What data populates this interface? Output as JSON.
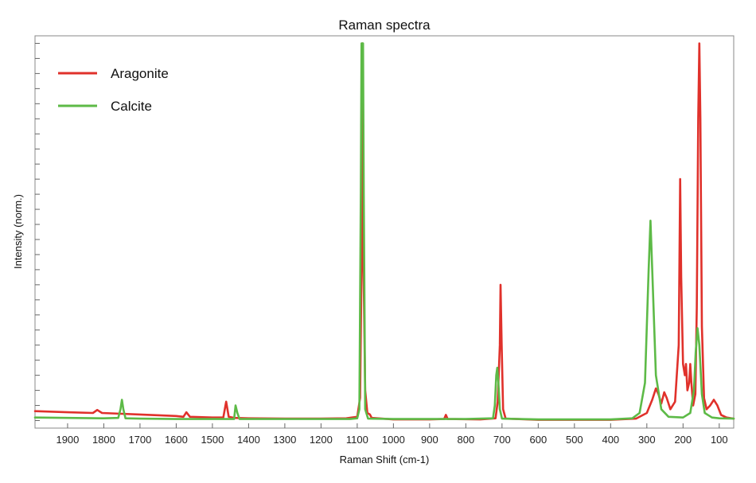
{
  "chart_data": {
    "type": "line",
    "title": "Raman spectra",
    "xlabel": "Raman Shift (cm-1)",
    "ylabel": "Intensity (norm.)",
    "xlim": [
      1990,
      60
    ],
    "x_reversed": true,
    "ylim": [
      -0.02,
      1.02
    ],
    "x_ticks": [
      1900,
      1800,
      1700,
      1600,
      1500,
      1400,
      1300,
      1200,
      1100,
      1000,
      900,
      800,
      700,
      600,
      500,
      400,
      300,
      200,
      100
    ],
    "y_tick_labels_shown": false,
    "grid": false,
    "legend_position": "top-left",
    "series": [
      {
        "name": "Aragonite",
        "color": "#e0312b",
        "points": [
          [
            1990,
            0.025
          ],
          [
            1900,
            0.022
          ],
          [
            1830,
            0.02
          ],
          [
            1818,
            0.028
          ],
          [
            1805,
            0.02
          ],
          [
            1750,
            0.018
          ],
          [
            1700,
            0.016
          ],
          [
            1600,
            0.012
          ],
          [
            1580,
            0.01
          ],
          [
            1572,
            0.022
          ],
          [
            1562,
            0.01
          ],
          [
            1500,
            0.008
          ],
          [
            1470,
            0.008
          ],
          [
            1462,
            0.05
          ],
          [
            1455,
            0.01
          ],
          [
            1440,
            0.007
          ],
          [
            1400,
            0.006
          ],
          [
            1300,
            0.005
          ],
          [
            1200,
            0.005
          ],
          [
            1130,
            0.006
          ],
          [
            1100,
            0.01
          ],
          [
            1092,
            0.06
          ],
          [
            1087,
            0.5
          ],
          [
            1086,
            1.0
          ],
          [
            1084,
            0.5
          ],
          [
            1078,
            0.08
          ],
          [
            1072,
            0.02
          ],
          [
            1065,
            0.016
          ],
          [
            1060,
            0.007
          ],
          [
            1000,
            0.003
          ],
          [
            900,
            0.003
          ],
          [
            860,
            0.004
          ],
          [
            855,
            0.015
          ],
          [
            850,
            0.004
          ],
          [
            760,
            0.003
          ],
          [
            718,
            0.006
          ],
          [
            712,
            0.05
          ],
          [
            706,
            0.2
          ],
          [
            704,
            0.36
          ],
          [
            701,
            0.2
          ],
          [
            697,
            0.03
          ],
          [
            690,
            0.005
          ],
          [
            600,
            0.002
          ],
          [
            500,
            0.002
          ],
          [
            400,
            0.002
          ],
          [
            330,
            0.005
          ],
          [
            300,
            0.02
          ],
          [
            285,
            0.055
          ],
          [
            275,
            0.085
          ],
          [
            268,
            0.07
          ],
          [
            260,
            0.045
          ],
          [
            252,
            0.075
          ],
          [
            245,
            0.06
          ],
          [
            235,
            0.03
          ],
          [
            222,
            0.05
          ],
          [
            212,
            0.2
          ],
          [
            208,
            0.64
          ],
          [
            205,
            0.38
          ],
          [
            200,
            0.15
          ],
          [
            195,
            0.12
          ],
          [
            192,
            0.15
          ],
          [
            188,
            0.08
          ],
          [
            183,
            0.1
          ],
          [
            180,
            0.15
          ],
          [
            177,
            0.1
          ],
          [
            172,
            0.04
          ],
          [
            166,
            0.07
          ],
          [
            162,
            0.3
          ],
          [
            158,
            0.8
          ],
          [
            155,
            1.0
          ],
          [
            152,
            0.8
          ],
          [
            148,
            0.25
          ],
          [
            142,
            0.06
          ],
          [
            135,
            0.03
          ],
          [
            125,
            0.04
          ],
          [
            115,
            0.055
          ],
          [
            105,
            0.04
          ],
          [
            95,
            0.015
          ],
          [
            80,
            0.008
          ],
          [
            60,
            0.005
          ]
        ]
      },
      {
        "name": "Calcite",
        "color": "#5dba47",
        "points": [
          [
            1990,
            0.008
          ],
          [
            1900,
            0.007
          ],
          [
            1800,
            0.006
          ],
          [
            1760,
            0.007
          ],
          [
            1754,
            0.03
          ],
          [
            1750,
            0.055
          ],
          [
            1746,
            0.03
          ],
          [
            1740,
            0.006
          ],
          [
            1700,
            0.005
          ],
          [
            1600,
            0.004
          ],
          [
            1500,
            0.004
          ],
          [
            1440,
            0.004
          ],
          [
            1436,
            0.04
          ],
          [
            1431,
            0.02
          ],
          [
            1425,
            0.004
          ],
          [
            1300,
            0.004
          ],
          [
            1200,
            0.004
          ],
          [
            1120,
            0.004
          ],
          [
            1100,
            0.006
          ],
          [
            1094,
            0.03
          ],
          [
            1090,
            0.6
          ],
          [
            1088,
            1.0
          ],
          [
            1084,
            1.0
          ],
          [
            1082,
            0.6
          ],
          [
            1078,
            0.03
          ],
          [
            1070,
            0.005
          ],
          [
            1000,
            0.004
          ],
          [
            900,
            0.004
          ],
          [
            800,
            0.004
          ],
          [
            725,
            0.006
          ],
          [
            720,
            0.04
          ],
          [
            716,
            0.12
          ],
          [
            713,
            0.14
          ],
          [
            710,
            0.1
          ],
          [
            706,
            0.03
          ],
          [
            700,
            0.005
          ],
          [
            600,
            0.003
          ],
          [
            500,
            0.003
          ],
          [
            400,
            0.003
          ],
          [
            340,
            0.006
          ],
          [
            320,
            0.02
          ],
          [
            305,
            0.1
          ],
          [
            295,
            0.4
          ],
          [
            290,
            0.53
          ],
          [
            285,
            0.4
          ],
          [
            275,
            0.12
          ],
          [
            260,
            0.03
          ],
          [
            240,
            0.01
          ],
          [
            200,
            0.008
          ],
          [
            180,
            0.02
          ],
          [
            170,
            0.08
          ],
          [
            165,
            0.18
          ],
          [
            160,
            0.245
          ],
          [
            155,
            0.2
          ],
          [
            148,
            0.07
          ],
          [
            140,
            0.02
          ],
          [
            120,
            0.008
          ],
          [
            100,
            0.006
          ],
          [
            60,
            0.005
          ]
        ]
      }
    ]
  }
}
